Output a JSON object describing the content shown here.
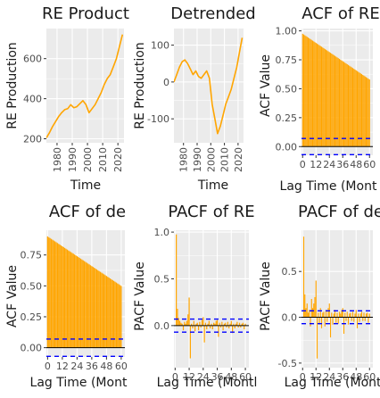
{
  "chart_data": [
    {
      "type": "line",
      "title": "RE Product",
      "xlabel": "Time",
      "ylabel": "RE Production",
      "xlim": [
        1973,
        2024
      ],
      "ylim": [
        180,
        750
      ],
      "x_ticks": [
        1980,
        1990,
        2000,
        2010,
        2020
      ],
      "x_tick_labels": [
        "1980",
        "1990",
        "2000",
        "2010",
        "2020"
      ],
      "y_ticks": [
        200,
        400,
        600
      ],
      "y_tick_labels": [
        "200",
        "400",
        "600"
      ],
      "series_color": "#FFA500",
      "grid": true,
      "x": [
        1973,
        1975,
        1977,
        1979,
        1981,
        1983,
        1985,
        1987,
        1989,
        1991,
        1993,
        1995,
        1997,
        1999,
        2001,
        2003,
        2005,
        2007,
        2009,
        2011,
        2013,
        2015,
        2017,
        2019,
        2021,
        2023
      ],
      "y": [
        205,
        230,
        260,
        285,
        310,
        330,
        345,
        350,
        370,
        355,
        360,
        375,
        390,
        370,
        330,
        350,
        370,
        400,
        430,
        470,
        500,
        520,
        560,
        600,
        660,
        720
      ]
    },
    {
      "type": "line",
      "title": "Detrended",
      "xlabel": "Time",
      "ylabel": "RE Production",
      "xlim": [
        1973,
        2024
      ],
      "ylim": [
        -165,
        145
      ],
      "x_ticks": [
        1980,
        1990,
        2000,
        2010,
        2020
      ],
      "x_tick_labels": [
        "1980",
        "1990",
        "2000",
        "2010",
        "2020"
      ],
      "y_ticks": [
        -100,
        0,
        100
      ],
      "y_tick_labels": [
        "-100",
        "0",
        "100"
      ],
      "series_color": "#FFA500",
      "grid": true,
      "x": [
        1973,
        1975,
        1977,
        1979,
        1981,
        1983,
        1985,
        1987,
        1989,
        1991,
        1993,
        1995,
        1997,
        1999,
        2001,
        2003,
        2005,
        2007,
        2009,
        2011,
        2013,
        2015,
        2017,
        2019,
        2021,
        2023
      ],
      "y": [
        0,
        20,
        40,
        55,
        60,
        50,
        35,
        20,
        30,
        15,
        10,
        20,
        30,
        10,
        -60,
        -100,
        -140,
        -120,
        -90,
        -60,
        -40,
        -20,
        10,
        40,
        80,
        120
      ]
    },
    {
      "type": "bar",
      "title": "ACF of RE",
      "xlabel": "Lag Time (Mont",
      "ylabel": "ACF Value",
      "xlim": [
        -1,
        63
      ],
      "ylim": [
        -0.075,
        1.02
      ],
      "x_ticks": [
        0,
        12,
        24,
        36,
        48,
        60
      ],
      "x_tick_labels": [
        "0",
        "12",
        "24",
        "36",
        "48",
        "60"
      ],
      "y_ticks": [
        0,
        0.25,
        0.5,
        0.75,
        1.0
      ],
      "y_tick_labels": [
        "0.00",
        "0.25",
        "0.50",
        "0.75",
        "1.00"
      ],
      "series_color": "#FFA500",
      "conf_limit": 0.07,
      "confidence_color": "#0000FF",
      "acf_start": 0.975,
      "acf_end": 0.58,
      "lags": 60,
      "grid": true
    },
    {
      "type": "bar",
      "title": "ACF of de",
      "xlabel": "Lag Time (Mont",
      "ylabel": "ACF Value",
      "xlim": [
        -1,
        63
      ],
      "ylim": [
        -0.075,
        0.95
      ],
      "x_ticks": [
        0,
        12,
        24,
        36,
        48,
        60
      ],
      "x_tick_labels": [
        "0",
        "12",
        "24",
        "36",
        "48",
        "60"
      ],
      "y_ticks": [
        0,
        0.25,
        0.5,
        0.75
      ],
      "y_tick_labels": [
        "0.00",
        "0.25",
        "0.50",
        "0.75"
      ],
      "series_color": "#FFA500",
      "conf_limit": 0.07,
      "confidence_color": "#0000FF",
      "acf_start": 0.9,
      "acf_end": 0.5,
      "lags": 60,
      "grid": true
    },
    {
      "type": "bar",
      "title": "PACF of RE",
      "xlabel": "Lag Time (Montl",
      "ylabel": "PACF Value",
      "xlim": [
        -1,
        63
      ],
      "ylim": [
        -0.45,
        1.02
      ],
      "x_ticks": [
        0,
        12,
        24,
        36,
        48,
        60
      ],
      "x_tick_labels": [
        "0",
        "12",
        "24",
        "36",
        "48",
        "60"
      ],
      "y_ticks": [
        0,
        0.5,
        1.0
      ],
      "y_tick_labels": [
        "0.0",
        "0.5",
        "1.0"
      ],
      "series_color": "#FFA500",
      "conf_limit": 0.07,
      "confidence_color": "#0000FF",
      "lags": [
        1,
        2,
        3,
        4,
        5,
        6,
        7,
        8,
        9,
        10,
        11,
        12,
        13,
        14,
        15,
        16,
        17,
        18,
        19,
        20,
        21,
        22,
        23,
        24,
        25,
        26,
        27,
        28,
        29,
        30,
        31,
        32,
        33,
        34,
        35,
        36,
        37,
        38,
        39,
        40,
        41,
        42,
        43,
        44,
        45,
        46,
        47,
        48,
        49,
        50,
        51,
        52,
        53,
        54,
        55,
        56,
        57,
        58,
        59,
        60
      ],
      "values": [
        0.975,
        0.18,
        0.08,
        0.05,
        0.03,
        0.02,
        -0.05,
        0.04,
        0.02,
        0.05,
        0.12,
        0.3,
        -0.35,
        0.02,
        -0.03,
        0.05,
        -0.06,
        0.02,
        0.03,
        -0.05,
        0.04,
        -0.02,
        0.06,
        0.09,
        -0.18,
        0.03,
        -0.04,
        0.02,
        0.05,
        -0.03,
        0.02,
        -0.04,
        0.03,
        0.02,
        0.05,
        0.06,
        -0.12,
        0.03,
        -0.02,
        0.04,
        -0.05,
        0.02,
        0.03,
        -0.02,
        0.04,
        -0.03,
        0.02,
        0.05,
        -0.08,
        0.02,
        -0.03,
        0.02,
        0.04,
        -0.02,
        0.03,
        -0.02,
        0.02,
        0.03,
        -0.04,
        0.02
      ],
      "grid": true
    },
    {
      "type": "bar",
      "title": "PACF of de",
      "xlabel": "Lag Time (Montl",
      "ylabel": "PACF Value",
      "xlim": [
        -1,
        63
      ],
      "ylim": [
        -0.55,
        0.95
      ],
      "x_ticks": [
        0,
        12,
        24,
        36,
        48,
        60
      ],
      "x_tick_labels": [
        "0",
        "12",
        "24",
        "36",
        "48",
        "60"
      ],
      "y_ticks": [
        -0.5,
        0,
        0.5
      ],
      "y_tick_labels": [
        "-0.5",
        "0.0",
        "0.5"
      ],
      "series_color": "#FFA500",
      "conf_limit": 0.07,
      "confidence_color": "#0000FF",
      "lags": [
        1,
        2,
        3,
        4,
        5,
        6,
        7,
        8,
        9,
        10,
        11,
        12,
        13,
        14,
        15,
        16,
        17,
        18,
        19,
        20,
        21,
        22,
        23,
        24,
        25,
        26,
        27,
        28,
        29,
        30,
        31,
        32,
        33,
        34,
        35,
        36,
        37,
        38,
        39,
        40,
        41,
        42,
        43,
        44,
        45,
        46,
        47,
        48,
        49,
        50,
        51,
        52,
        53,
        54,
        55,
        56,
        57,
        58,
        59,
        60
      ],
      "values": [
        0.88,
        0.25,
        0.1,
        0.15,
        0.05,
        0.08,
        -0.1,
        0.2,
        0.1,
        0.15,
        0.22,
        0.4,
        -0.45,
        0.05,
        -0.08,
        0.1,
        -0.12,
        0.05,
        0.06,
        -0.1,
        0.08,
        -0.05,
        0.1,
        0.15,
        -0.22,
        0.05,
        -0.08,
        0.04,
        0.08,
        -0.06,
        0.05,
        -0.07,
        0.06,
        0.04,
        0.08,
        0.1,
        -0.18,
        0.05,
        -0.04,
        0.06,
        -0.08,
        0.04,
        0.05,
        -0.04,
        0.06,
        -0.05,
        0.04,
        0.08,
        -0.12,
        0.04,
        -0.05,
        0.04,
        0.06,
        -0.04,
        0.05,
        -0.04,
        0.04,
        0.05,
        -0.06,
        0.04
      ],
      "grid": true
    }
  ]
}
